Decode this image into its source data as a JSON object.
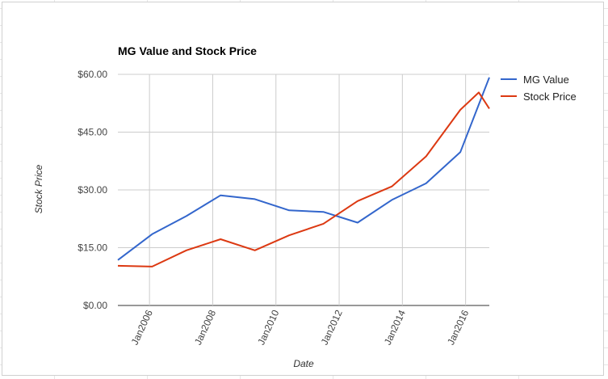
{
  "chart_data": {
    "type": "line",
    "title": "MG Value and Stock Price",
    "xlabel": "Date",
    "ylabel": "Stock Price",
    "x_ticks": [
      "Jan2006",
      "Jan2008",
      "Jan2010",
      "Jan2012",
      "Jan2014",
      "Jan2016"
    ],
    "y_ticks": [
      "$0.00",
      "$15.00",
      "$30.00",
      "$45.00",
      "$60.00"
    ],
    "ylim": [
      0,
      60
    ],
    "xlim": [
      "2005-01",
      "2016-10"
    ],
    "grid": true,
    "legend_position": "right",
    "series": [
      {
        "name": "MG Value",
        "color": "#3366cc",
        "points": [
          [
            "2005-01",
            11.8
          ],
          [
            "2006-02",
            18.5
          ],
          [
            "2007-03",
            23.2
          ],
          [
            "2008-04",
            28.6
          ],
          [
            "2009-05",
            27.6
          ],
          [
            "2010-06",
            24.7
          ],
          [
            "2011-07",
            24.3
          ],
          [
            "2012-08",
            21.5
          ],
          [
            "2013-09",
            27.4
          ],
          [
            "2014-10",
            31.7
          ],
          [
            "2015-11",
            39.8
          ],
          [
            "2016-10",
            59.2
          ]
        ]
      },
      {
        "name": "Stock Price",
        "color": "#dc3912",
        "points": [
          [
            "2005-01",
            10.3
          ],
          [
            "2006-02",
            10.1
          ],
          [
            "2007-03",
            14.3
          ],
          [
            "2008-04",
            17.2
          ],
          [
            "2009-05",
            14.3
          ],
          [
            "2010-06",
            18.2
          ],
          [
            "2011-07",
            21.2
          ],
          [
            "2012-08",
            27.1
          ],
          [
            "2013-09",
            30.9
          ],
          [
            "2014-10",
            38.7
          ],
          [
            "2015-11",
            50.8
          ],
          [
            "2016-06",
            55.3
          ],
          [
            "2016-10",
            51.1
          ]
        ]
      }
    ]
  }
}
